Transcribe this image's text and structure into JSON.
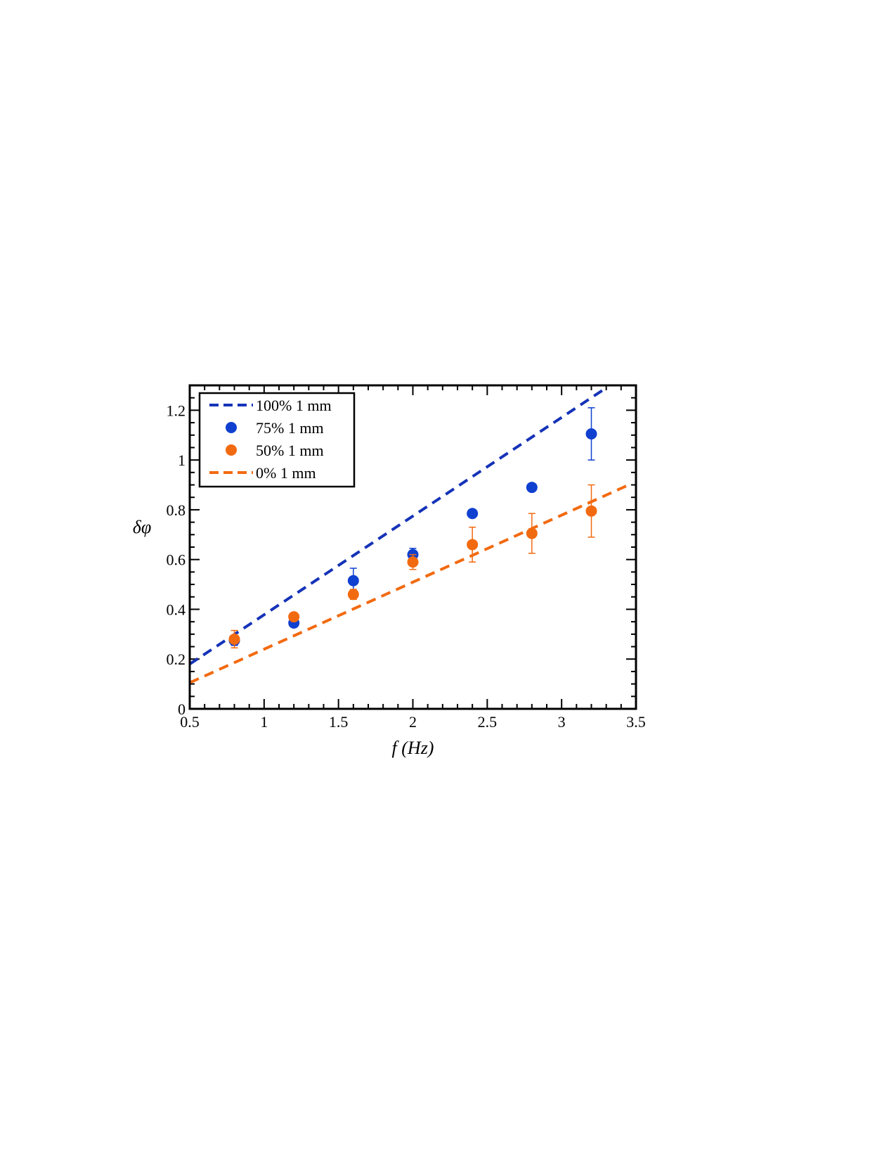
{
  "chart_data": {
    "type": "scatter",
    "xlabel": "f  (Hz)",
    "ylabel": "δφ",
    "xlim": [
      0.5,
      3.5
    ],
    "ylim": [
      0,
      1.3
    ],
    "xticks": [
      0.5,
      1,
      1.5,
      2,
      2.5,
      3,
      3.5
    ],
    "xtick_labels": [
      "0.5",
      "1",
      "1.5",
      "2",
      "2.5",
      "3",
      "3.5"
    ],
    "yticks": [
      0,
      0.2,
      0.4,
      0.6,
      0.8,
      1,
      1.2
    ],
    "ytick_labels": [
      "0",
      "0.2",
      "0.4",
      "0.6",
      "0.8",
      "1",
      "1.2"
    ],
    "grid": false,
    "legend_position": "top-left",
    "series": [
      {
        "name": "100% 1 mm",
        "kind": "dashed-line",
        "color": "#1533b8",
        "x": [
          0.5,
          3.3
        ],
        "y": [
          0.18,
          1.29
        ]
      },
      {
        "name": "75% 1 mm",
        "kind": "markers",
        "color": "#1040d0",
        "x": [
          0.8,
          1.2,
          1.6,
          2.0,
          2.4,
          2.8,
          3.2
        ],
        "y": [
          0.275,
          0.345,
          0.515,
          0.62,
          0.785,
          0.89,
          1.105
        ],
        "err": [
          0.02,
          0.0,
          0.05,
          0.025,
          0.0,
          0.0,
          0.105
        ]
      },
      {
        "name": "50% 1 mm",
        "kind": "markers",
        "color": "#f26a10",
        "x": [
          0.8,
          1.2,
          1.6,
          2.0,
          2.4,
          2.8,
          3.2
        ],
        "y": [
          0.28,
          0.37,
          0.46,
          0.59,
          0.66,
          0.705,
          0.795
        ],
        "err": [
          0.035,
          0.0,
          0.02,
          0.03,
          0.07,
          0.08,
          0.105
        ]
      },
      {
        "name": "0% 1 mm",
        "kind": "dashed-line",
        "color": "#f26a10",
        "x": [
          0.5,
          3.47
        ],
        "y": [
          0.105,
          0.905
        ]
      }
    ]
  }
}
